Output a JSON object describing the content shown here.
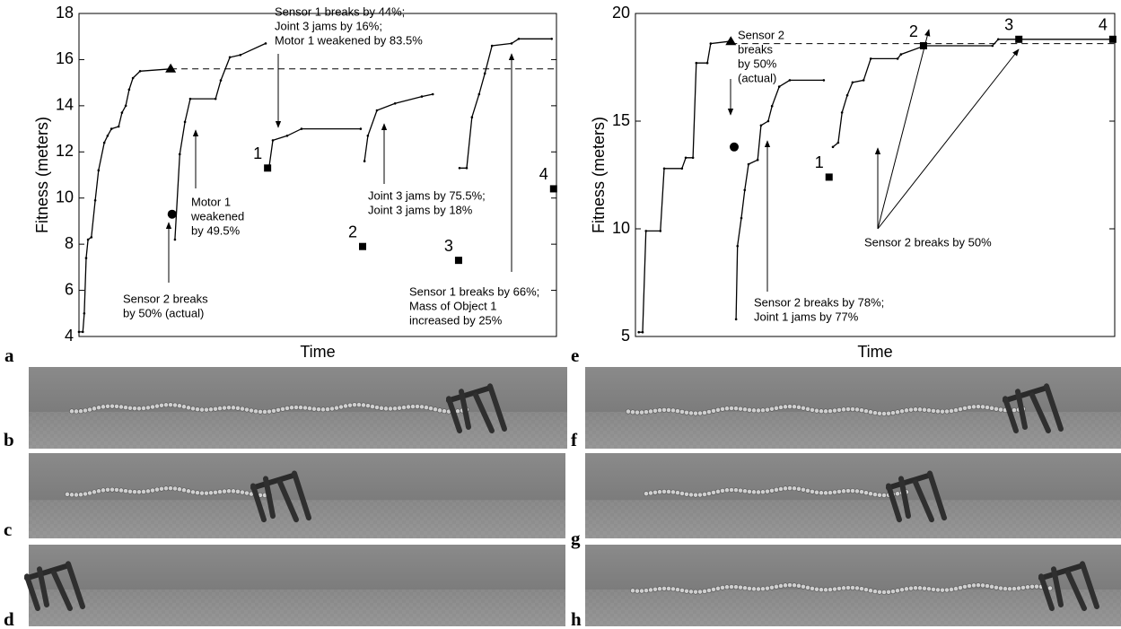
{
  "chart_data": [
    {
      "type": "line",
      "label": "a",
      "xlabel": "Time",
      "ylabel": "Fitness (meters)",
      "xlim": [
        0,
        100
      ],
      "ylim": [
        4,
        18
      ],
      "yticks": [
        4,
        6,
        8,
        10,
        12,
        14,
        16,
        18
      ],
      "series": [
        {
          "color": "#000000",
          "x": [
            0,
            0.8,
            1.1,
            1.5,
            1.9,
            2.6,
            3.4,
            4.1,
            5.3,
            6,
            6.8,
            8.3,
            9,
            9.8,
            10.5,
            11.3,
            12.8,
            19.5
          ],
          "values": [
            4.2,
            4.2,
            5,
            7.4,
            8.2,
            8.3,
            9.9,
            11.2,
            12.4,
            12.7,
            13,
            13.1,
            13.7,
            14,
            14.7,
            15.2,
            15.5,
            15.6
          ]
        },
        {
          "color": "#000000",
          "x": [
            20.1,
            21.1,
            22.2,
            23.3,
            28.6,
            29.7,
            31.6,
            33.8,
            39.1
          ],
          "values": [
            8.2,
            11.9,
            13.3,
            14.3,
            14.3,
            15.1,
            16.1,
            16.2,
            16.7
          ]
        },
        {
          "color": "#000000",
          "x": [
            39.8,
            40.6,
            43.6,
            46.6,
            59
          ],
          "values": [
            11.3,
            12.5,
            12.7,
            13,
            13
          ]
        },
        {
          "color": "#000000",
          "x": [
            59.8,
            60.5,
            62.4,
            66.2,
            71.8,
            74.1
          ],
          "values": [
            11.6,
            12.7,
            13.8,
            14.1,
            14.4,
            14.5
          ]
        },
        {
          "color": "#000000",
          "x": [
            79.7,
            81.2,
            82.3,
            83.8,
            85,
            86.5,
            90.6,
            92.1,
            99
          ],
          "values": [
            11.3,
            11.3,
            13.5,
            14.5,
            15.4,
            16.6,
            16.7,
            16.9,
            16.9
          ]
        },
        {
          "color": "#000000",
          "style": "dashed",
          "x": [
            19.2,
            100
          ],
          "values": [
            15.6,
            15.6
          ]
        }
      ],
      "triangle": {
        "x": 19.2,
        "value": 15.6
      },
      "circle": {
        "x": 19.5,
        "value": 9.3
      },
      "squares": {
        "x": [
          39.5,
          59.4,
          79.5,
          99.4
        ],
        "values": [
          11.3,
          7.9,
          7.3,
          10.4
        ],
        "labels": [
          "1",
          "2",
          "3",
          "4"
        ]
      },
      "annotations": [
        [
          "Sensor 1 breaks by 44%;",
          "Joint 3 jams by 16%;",
          "Motor 1 weakened by 83.5%"
        ],
        [
          "Motor 1",
          "weakened",
          "by 49.5%"
        ],
        [
          "Sensor 2 breaks",
          "by 50% (actual)"
        ],
        [
          "Joint 3 jams by 75.5%;",
          "Joint 3 jams by 18%"
        ],
        [
          "Sensor 1 breaks by 66%;",
          "Mass of Object 1",
          "increased by 25%"
        ]
      ]
    },
    {
      "type": "line",
      "label": "e",
      "xlabel": "Time",
      "ylabel": "Fitness (meters)",
      "xlim": [
        0,
        100
      ],
      "ylim": [
        5,
        20
      ],
      "yticks": [
        5,
        10,
        15,
        20
      ],
      "series": [
        {
          "color": "#000000",
          "x": [
            0.7,
            1.5,
            2.2,
            5.2,
            6,
            9.7,
            10.5,
            12,
            12.7,
            15,
            15.7,
            19.5
          ],
          "values": [
            5.2,
            5.2,
            9.9,
            9.9,
            12.8,
            12.8,
            13.3,
            13.3,
            17.7,
            17.7,
            18.6,
            18.7
          ]
        },
        {
          "color": "#000000",
          "x": [
            21,
            21.3,
            22.1,
            22.8,
            23.6,
            25.5,
            26.2,
            27.7,
            28.5,
            30,
            32.2,
            39.3
          ],
          "values": [
            5.8,
            9.2,
            10.5,
            11.8,
            13,
            13.2,
            14.8,
            15,
            15.7,
            16.6,
            16.9,
            16.9
          ]
        },
        {
          "color": "#000000",
          "x": [
            41.2,
            42.3,
            43.1,
            44.2,
            45.3,
            47.6,
            49.1,
            54.7,
            55.4,
            60.3,
            74.5,
            75.7,
            99.3
          ],
          "values": [
            13.8,
            14,
            15.4,
            16.2,
            16.8,
            16.9,
            17.9,
            17.9,
            18.1,
            18.5,
            18.5,
            18.8,
            18.8
          ]
        },
        {
          "color": "#000000",
          "style": "dashed",
          "x": [
            19.9,
            100
          ],
          "values": [
            18.6,
            18.6
          ]
        }
      ],
      "triangle": {
        "x": 19.9,
        "value": 18.7
      },
      "circle": {
        "x": 20.6,
        "value": 13.8
      },
      "squares": {
        "x": [
          40.4,
          60.1,
          80,
          99.6
        ],
        "values": [
          12.4,
          18.5,
          18.8,
          18.8
        ],
        "labels": [
          "1",
          "2",
          "3",
          "4"
        ]
      },
      "annotations": [
        [
          "Sensor 2",
          "breaks",
          "by 50%",
          "(actual)"
        ],
        [
          "Sensor 2 breaks by 50%"
        ],
        [
          "Sensor 2 breaks by 78%;",
          "Joint 1 jams by 77%"
        ]
      ]
    }
  ],
  "panels": [
    "b",
    "c",
    "d",
    "f",
    "g",
    "h"
  ]
}
